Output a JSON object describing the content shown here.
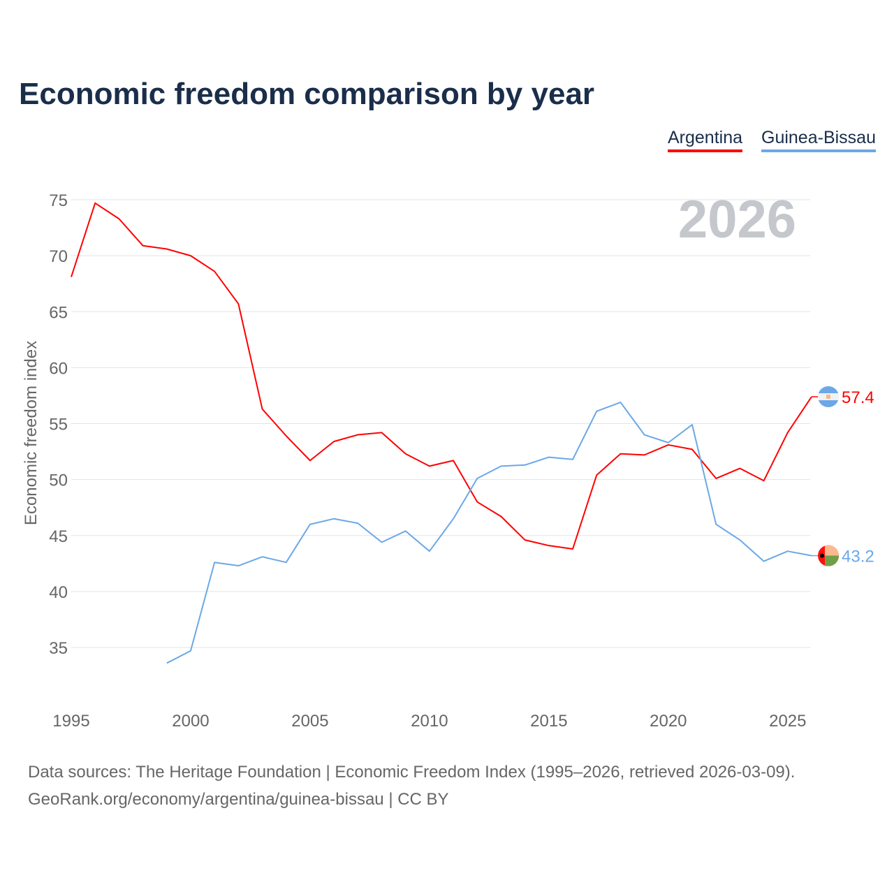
{
  "title": "Economic freedom comparison by year",
  "source_lines": [
    "Data sources: The Heritage Foundation | Economic Freedom Index (1995–2026, retrieved 2026-03-09).",
    "GeoRank.org/economy/argentina/guinea-bissau | CC BY"
  ],
  "chart_data": {
    "type": "line",
    "title": "Economic freedom comparison by year",
    "xlabel": "",
    "ylabel": "Economic freedom index",
    "xlim": [
      1995,
      2026
    ],
    "ylim": [
      31,
      77
    ],
    "x_ticks": [
      1995,
      2000,
      2005,
      2010,
      2015,
      2020,
      2025
    ],
    "y_ticks": [
      35,
      40,
      45,
      50,
      55,
      60,
      65,
      70,
      75
    ],
    "grid": true,
    "legend_placement": "top-right",
    "year_watermark": "2026",
    "series": [
      {
        "name": "Argentina",
        "color": "#ff0000",
        "flag": "argentina-flag",
        "end_label": "57.4",
        "x": [
          1995,
          1996,
          1997,
          1998,
          1999,
          2000,
          2001,
          2002,
          2003,
          2004,
          2005,
          2006,
          2007,
          2008,
          2009,
          2010,
          2011,
          2012,
          2013,
          2014,
          2015,
          2016,
          2017,
          2018,
          2019,
          2020,
          2021,
          2022,
          2023,
          2024,
          2025,
          2026
        ],
        "values": [
          68.1,
          74.7,
          73.3,
          70.9,
          70.6,
          70.0,
          68.6,
          65.7,
          56.3,
          53.9,
          51.7,
          53.4,
          54.0,
          54.2,
          52.3,
          51.2,
          51.7,
          48.0,
          46.7,
          44.6,
          44.1,
          43.8,
          50.4,
          52.3,
          52.2,
          53.1,
          52.7,
          50.1,
          51.0,
          49.9,
          54.2,
          57.4
        ]
      },
      {
        "name": "Guinea-Bissau",
        "color": "#6aa8e8",
        "flag": "guinea-bissau-flag",
        "end_label": "43.2",
        "x": [
          1999,
          2000,
          2001,
          2002,
          2003,
          2004,
          2005,
          2006,
          2007,
          2008,
          2009,
          2010,
          2011,
          2012,
          2013,
          2014,
          2015,
          2016,
          2017,
          2018,
          2019,
          2020,
          2021,
          2022,
          2023,
          2024,
          2025,
          2026
        ],
        "values": [
          33.6,
          34.7,
          42.6,
          42.3,
          43.1,
          42.6,
          46.0,
          46.5,
          46.1,
          44.4,
          45.4,
          43.6,
          46.5,
          50.1,
          51.2,
          51.3,
          52.0,
          51.8,
          56.1,
          56.9,
          54.0,
          53.3,
          54.9,
          46.0,
          44.6,
          42.7,
          43.6,
          43.2
        ]
      }
    ]
  }
}
